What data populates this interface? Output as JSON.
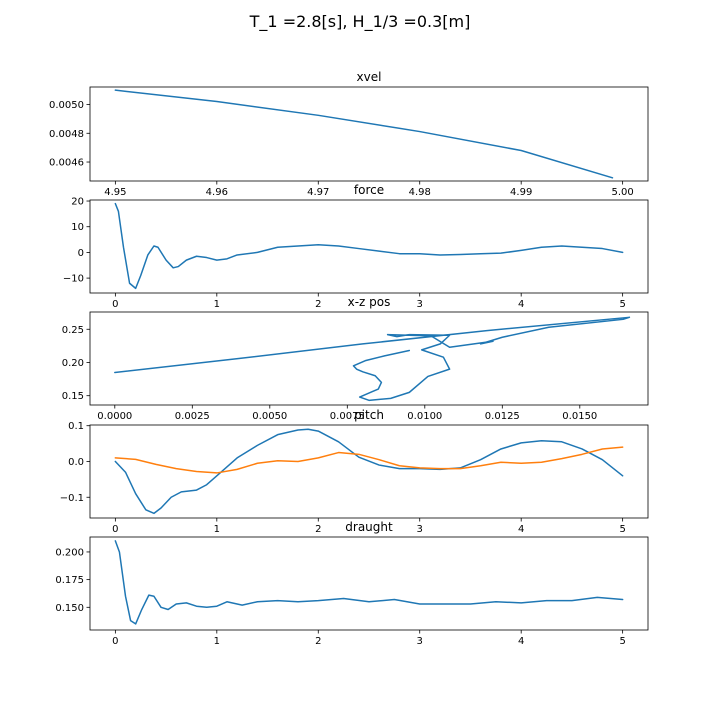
{
  "figure": {
    "title": "T_1 =2.8[s], H_1/3 =0.3[m]"
  },
  "colors": {
    "series1": "#1f77b4",
    "series2": "#ff7f0e"
  },
  "chart_data": [
    {
      "type": "line",
      "title": "xvel",
      "xlim": [
        4.9475,
        5.0025
      ],
      "ylim": [
        0.004468,
        0.005122
      ],
      "xticks": [
        4.95,
        4.96,
        4.97,
        4.98,
        4.99,
        5.0
      ],
      "xtick_labels": [
        "4.95",
        "4.96",
        "4.97",
        "4.98",
        "4.99",
        "5.00"
      ],
      "yticks": [
        0.0046,
        0.0048,
        0.005
      ],
      "ytick_labels": [
        "0.0046",
        "0.0048",
        "0.0050"
      ],
      "series": [
        {
          "color": "#1f77b4",
          "x": [
            4.95,
            4.96,
            4.97,
            4.98,
            4.99,
            4.999
          ],
          "y": [
            0.0051,
            0.005021,
            0.004925,
            0.004812,
            0.00468,
            0.00449
          ]
        }
      ]
    },
    {
      "type": "line",
      "title": "force",
      "xlim": [
        -0.25,
        5.25
      ],
      "ylim": [
        -15.8,
        20.4
      ],
      "xticks": [
        0,
        1,
        2,
        3,
        4,
        5
      ],
      "xtick_labels": [
        "0",
        "1",
        "2",
        "3",
        "4",
        "5"
      ],
      "yticks": [
        -10,
        0,
        10,
        20
      ],
      "ytick_labels": [
        "−10",
        "0",
        "10",
        "20"
      ],
      "series": [
        {
          "color": "#1f77b4",
          "x": [
            0,
            0.03,
            0.08,
            0.14,
            0.2,
            0.25,
            0.32,
            0.38,
            0.42,
            0.5,
            0.57,
            0.62,
            0.7,
            0.8,
            0.9,
            1.0,
            1.1,
            1.2,
            1.4,
            1.6,
            1.8,
            2.0,
            2.2,
            2.4,
            2.6,
            2.8,
            3.0,
            3.2,
            3.4,
            3.6,
            3.8,
            4.0,
            4.2,
            4.4,
            4.6,
            4.8,
            5.0
          ],
          "y": [
            19,
            16,
            2,
            -12,
            -14,
            -9,
            -1,
            2.5,
            2,
            -3,
            -6,
            -5.5,
            -3,
            -1.5,
            -2,
            -3,
            -2.5,
            -1,
            0,
            2,
            2.5,
            3,
            2.5,
            1.5,
            0.5,
            -0.5,
            -0.5,
            -1,
            -0.8,
            -0.5,
            -0.3,
            0.8,
            2,
            2.5,
            2,
            1.5,
            0
          ]
        }
      ]
    },
    {
      "type": "line",
      "title": "x-z pos",
      "xlim": [
        -0.0008,
        0.0172
      ],
      "ylim": [
        0.136,
        0.276
      ],
      "xticks": [
        0,
        0.0025,
        0.005,
        0.0075,
        0.01,
        0.0125,
        0.015
      ],
      "xtick_labels": [
        "0.0000",
        "0.0025",
        "0.0050",
        "0.0075",
        "0.0100",
        "0.0125",
        "0.0150"
      ],
      "yticks": [
        0.15,
        0.2,
        0.25
      ],
      "ytick_labels": [
        "0.15",
        "0.20",
        "0.25"
      ],
      "series": [
        {
          "color": "#1f77b4",
          "x": [
            0,
            0.004,
            0.008,
            0.012,
            0.0166,
            0.0164,
            0.014,
            0.0125,
            0.0118,
            0.0122,
            0.0108,
            0.0102,
            0.0088,
            0.0091,
            0.0095,
            0.0108,
            0.0105,
            0.0099,
            0.0106,
            0.0108,
            0.0101,
            0.0095,
            0.0089,
            0.0082,
            0.0079,
            0.0083,
            0.0085,
            0.0086,
            0.0084,
            0.008,
            0.0078,
            0.0077,
            0.0081,
            0.0087,
            0.0095
          ],
          "y": [
            0.185,
            0.206,
            0.228,
            0.248,
            0.268,
            0.265,
            0.253,
            0.238,
            0.228,
            0.232,
            0.223,
            0.24,
            0.242,
            0.239,
            0.242,
            0.241,
            0.228,
            0.219,
            0.208,
            0.19,
            0.179,
            0.155,
            0.146,
            0.143,
            0.148,
            0.156,
            0.16,
            0.17,
            0.18,
            0.186,
            0.19,
            0.195,
            0.203,
            0.21,
            0.218
          ]
        }
      ]
    },
    {
      "type": "line",
      "title": "pitch",
      "xlim": [
        -0.25,
        5.25
      ],
      "ylim": [
        -0.158,
        0.102
      ],
      "xticks": [
        0,
        1,
        2,
        3,
        4,
        5
      ],
      "xtick_labels": [
        "0",
        "1",
        "2",
        "3",
        "4",
        "5"
      ],
      "yticks": [
        -0.1,
        0.0,
        0.1
      ],
      "ytick_labels": [
        "−0.1",
        "0.0",
        "0.1"
      ],
      "series": [
        {
          "color": "#1f77b4",
          "x": [
            0,
            0.1,
            0.2,
            0.3,
            0.38,
            0.45,
            0.55,
            0.65,
            0.8,
            0.9,
            1.0,
            1.2,
            1.4,
            1.6,
            1.8,
            1.9,
            2.0,
            2.2,
            2.4,
            2.6,
            2.8,
            3.0,
            3.2,
            3.4,
            3.6,
            3.8,
            4.0,
            4.2,
            4.4,
            4.6,
            4.8,
            5.0
          ],
          "y": [
            0.0,
            -0.03,
            -0.09,
            -0.135,
            -0.145,
            -0.13,
            -0.1,
            -0.085,
            -0.08,
            -0.065,
            -0.04,
            0.01,
            0.045,
            0.075,
            0.088,
            0.09,
            0.085,
            0.055,
            0.012,
            -0.01,
            -0.02,
            -0.02,
            -0.022,
            -0.018,
            0.005,
            0.035,
            0.052,
            0.058,
            0.055,
            0.035,
            0.005,
            -0.04
          ]
        },
        {
          "color": "#ff7f0e",
          "x": [
            0,
            0.2,
            0.4,
            0.6,
            0.8,
            1.0,
            1.2,
            1.4,
            1.6,
            1.8,
            2.0,
            2.2,
            2.4,
            2.6,
            2.8,
            3.0,
            3.2,
            3.4,
            3.6,
            3.8,
            4.0,
            4.2,
            4.4,
            4.6,
            4.8,
            5.0
          ],
          "y": [
            0.01,
            0.006,
            -0.008,
            -0.02,
            -0.028,
            -0.032,
            -0.022,
            -0.005,
            0.002,
            0.0,
            0.01,
            0.025,
            0.02,
            0.005,
            -0.012,
            -0.018,
            -0.02,
            -0.02,
            -0.012,
            -0.002,
            -0.005,
            -0.002,
            0.008,
            0.02,
            0.035,
            0.04
          ]
        }
      ]
    },
    {
      "type": "line",
      "title": "draught",
      "xlim": [
        -0.25,
        5.25
      ],
      "ylim": [
        0.1295,
        0.2135
      ],
      "xticks": [
        0,
        1,
        2,
        3,
        4,
        5
      ],
      "xtick_labels": [
        "0",
        "1",
        "2",
        "3",
        "4",
        "5"
      ],
      "yticks": [
        0.15,
        0.175,
        0.2
      ],
      "ytick_labels": [
        "0.150",
        "0.175",
        "0.200"
      ],
      "series": [
        {
          "color": "#1f77b4",
          "x": [
            0,
            0.04,
            0.1,
            0.15,
            0.2,
            0.26,
            0.33,
            0.38,
            0.45,
            0.52,
            0.6,
            0.7,
            0.8,
            0.9,
            1.0,
            1.1,
            1.25,
            1.4,
            1.6,
            1.8,
            2.0,
            2.25,
            2.5,
            2.75,
            3.0,
            3.25,
            3.5,
            3.75,
            4.0,
            4.25,
            4.5,
            4.75,
            5.0
          ],
          "y": [
            0.21,
            0.2,
            0.16,
            0.138,
            0.135,
            0.148,
            0.161,
            0.16,
            0.15,
            0.148,
            0.153,
            0.154,
            0.151,
            0.15,
            0.151,
            0.155,
            0.152,
            0.155,
            0.156,
            0.155,
            0.156,
            0.158,
            0.155,
            0.157,
            0.153,
            0.153,
            0.153,
            0.155,
            0.154,
            0.156,
            0.156,
            0.159,
            0.157
          ]
        }
      ]
    }
  ]
}
